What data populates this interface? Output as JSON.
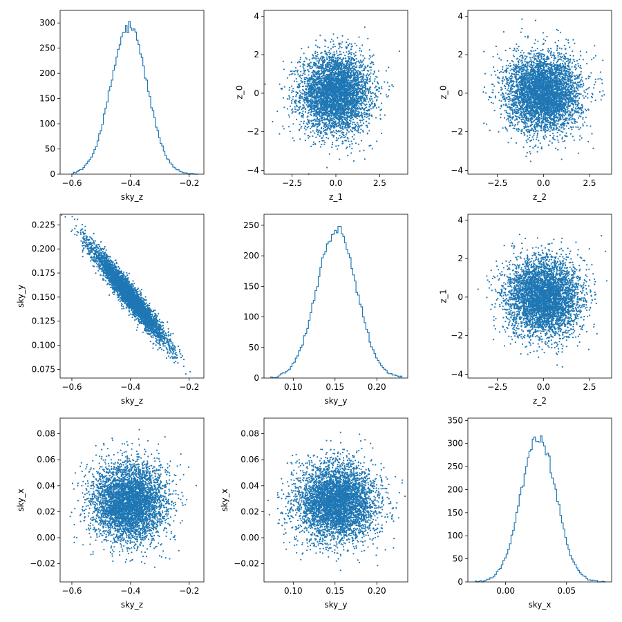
{
  "figure": {
    "color": "#1f77b4"
  },
  "chart_data": [
    {
      "type": "histogram",
      "row": 0,
      "col": 0,
      "xlabel": "sky_z",
      "ylabel": "",
      "xlim": [
        -0.64,
        -0.15
      ],
      "ylim": [
        0,
        325
      ],
      "xticks": [
        -0.6,
        -0.4,
        -0.2
      ],
      "xtick_labels": [
        "−0.6",
        "−0.4",
        "−0.2"
      ],
      "yticks": [
        0,
        50,
        100,
        150,
        200,
        250,
        300
      ],
      "ytick_labels": [
        "0",
        "50",
        "100",
        "150",
        "200",
        "250",
        "300"
      ],
      "profile": {
        "center": -0.405,
        "sigma": 0.062,
        "peak": 292,
        "min": -0.6,
        "max": -0.17,
        "bins": 80
      }
    },
    {
      "type": "scatter",
      "row": 0,
      "col": 1,
      "xlabel": "z_1",
      "ylabel": "z_0",
      "xlim": [
        -4.1,
        4.1
      ],
      "ylim": [
        -4.2,
        4.3
      ],
      "xticks": [
        -2.5,
        0,
        2.5
      ],
      "xtick_labels": [
        "−2.5",
        "0.0",
        "2.5"
      ],
      "yticks": [
        -4,
        -2,
        0,
        2,
        4
      ],
      "ytick_labels": [
        "−4",
        "−2",
        "0",
        "2",
        "4"
      ],
      "distribution": {
        "mean_x": 0,
        "mean_y": 0,
        "sd_x": 1,
        "sd_y": 1,
        "corr": 0,
        "count": 4500
      }
    },
    {
      "type": "scatter",
      "row": 0,
      "col": 2,
      "xlabel": "z_2",
      "ylabel": "z_0",
      "xlim": [
        -4.1,
        3.7
      ],
      "ylim": [
        -4.2,
        4.3
      ],
      "xticks": [
        -2.5,
        0,
        2.5
      ],
      "xtick_labels": [
        "−2.5",
        "0.0",
        "2.5"
      ],
      "yticks": [
        -4,
        -2,
        0,
        2,
        4
      ],
      "ytick_labels": [
        "−4",
        "−2",
        "0",
        "2",
        "4"
      ],
      "distribution": {
        "mean_x": 0,
        "mean_y": 0,
        "sd_x": 1,
        "sd_y": 1,
        "corr": 0,
        "count": 4500
      }
    },
    {
      "type": "scatter",
      "row": 1,
      "col": 0,
      "xlabel": "sky_z",
      "ylabel": "sky_y",
      "xlim": [
        -0.64,
        -0.15
      ],
      "ylim": [
        0.066,
        0.236
      ],
      "xticks": [
        -0.6,
        -0.4,
        -0.2
      ],
      "xtick_labels": [
        "−0.6",
        "−0.4",
        "−0.2"
      ],
      "yticks": [
        0.075,
        0.1,
        0.125,
        0.15,
        0.175,
        0.2,
        0.225
      ],
      "ytick_labels": [
        "0.075",
        "0.100",
        "0.125",
        "0.150",
        "0.175",
        "0.200",
        "0.225"
      ],
      "distribution": {
        "mean_x": -0.405,
        "mean_y": 0.152,
        "sd_x": 0.062,
        "sd_y": 0.024,
        "corr": -0.96,
        "count": 4500
      }
    },
    {
      "type": "histogram",
      "row": 1,
      "col": 1,
      "xlabel": "sky_y",
      "ylabel": "",
      "xlim": [
        0.065,
        0.237
      ],
      "ylim": [
        0,
        268
      ],
      "xticks": [
        0.1,
        0.15,
        0.2
      ],
      "xtick_labels": [
        "0.10",
        "0.15",
        "0.20"
      ],
      "yticks": [
        0,
        50,
        100,
        150,
        200,
        250
      ],
      "ytick_labels": [
        "0",
        "50",
        "100",
        "150",
        "200",
        "250"
      ],
      "profile": {
        "center": 0.152,
        "sigma": 0.024,
        "peak": 242,
        "min": 0.073,
        "max": 0.23,
        "bins": 80
      }
    },
    {
      "type": "scatter",
      "row": 1,
      "col": 2,
      "xlabel": "z_2",
      "ylabel": "z_1",
      "xlim": [
        -4.1,
        3.7
      ],
      "ylim": [
        -4.2,
        4.3
      ],
      "xticks": [
        -2.5,
        0,
        2.5
      ],
      "xtick_labels": [
        "−2.5",
        "0.0",
        "2.5"
      ],
      "yticks": [
        -4,
        -2,
        0,
        2,
        4
      ],
      "ytick_labels": [
        "−4",
        "−2",
        "0",
        "2",
        "4"
      ],
      "distribution": {
        "mean_x": 0,
        "mean_y": 0,
        "sd_x": 1,
        "sd_y": 1,
        "corr": 0,
        "count": 4500
      }
    },
    {
      "type": "scatter",
      "row": 2,
      "col": 0,
      "xlabel": "sky_z",
      "ylabel": "sky_x",
      "xlim": [
        -0.64,
        -0.15
      ],
      "ylim": [
        -0.034,
        0.092
      ],
      "xticks": [
        -0.6,
        -0.4,
        -0.2
      ],
      "xtick_labels": [
        "−0.6",
        "−0.4",
        "−0.2"
      ],
      "yticks": [
        -0.02,
        0,
        0.02,
        0.04,
        0.06,
        0.08
      ],
      "ytick_labels": [
        "−0.02",
        "0.00",
        "0.02",
        "0.04",
        "0.06",
        "0.08"
      ],
      "distribution": {
        "mean_x": -0.405,
        "mean_y": 0.027,
        "sd_x": 0.062,
        "sd_y": 0.015,
        "corr": 0,
        "count": 4500
      }
    },
    {
      "type": "scatter",
      "row": 2,
      "col": 1,
      "xlabel": "sky_y",
      "ylabel": "sky_x",
      "xlim": [
        0.065,
        0.237
      ],
      "ylim": [
        -0.034,
        0.092
      ],
      "xticks": [
        0.1,
        0.15,
        0.2
      ],
      "xtick_labels": [
        "0.10",
        "0.15",
        "0.20"
      ],
      "yticks": [
        -0.02,
        0,
        0.02,
        0.04,
        0.06,
        0.08
      ],
      "ytick_labels": [
        "−0.02",
        "0.00",
        "0.02",
        "0.04",
        "0.06",
        "0.08"
      ],
      "distribution": {
        "mean_x": 0.152,
        "mean_y": 0.027,
        "sd_x": 0.024,
        "sd_y": 0.015,
        "corr": 0,
        "count": 4500
      }
    },
    {
      "type": "histogram",
      "row": 2,
      "col": 2,
      "xlabel": "sky_x",
      "ylabel": "",
      "xlim": [
        -0.031,
        0.087
      ],
      "ylim": [
        0,
        355
      ],
      "xticks": [
        0,
        0.05
      ],
      "xtick_labels": [
        "0.00",
        "0.05"
      ],
      "yticks": [
        0,
        50,
        100,
        150,
        200,
        250,
        300,
        350
      ],
      "ytick_labels": [
        "0",
        "50",
        "100",
        "150",
        "200",
        "250",
        "300",
        "350"
      ],
      "profile": {
        "center": 0.027,
        "sigma": 0.0145,
        "peak": 315,
        "min": -0.025,
        "max": 0.082,
        "bins": 80
      }
    }
  ]
}
